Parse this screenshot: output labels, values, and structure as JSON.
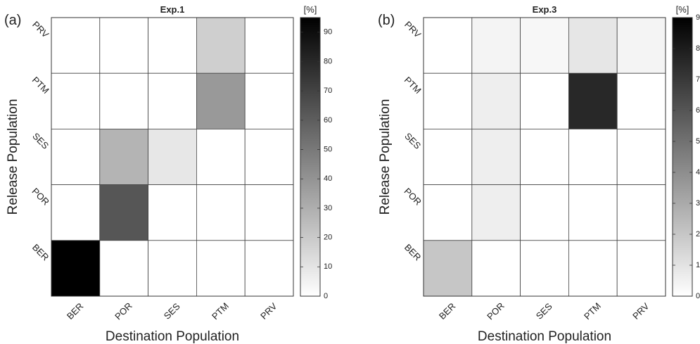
{
  "chart_data": [
    {
      "type": "heatmap",
      "panel_label": "(a)",
      "title": "Exp.1",
      "xlabel": "Destination Population",
      "ylabel": "Release Population",
      "x_categories": [
        "BER",
        "POR",
        "SES",
        "PTM",
        "PRV"
      ],
      "y_categories": [
        "PRV",
        "PTM",
        "SES",
        "POR",
        "BER"
      ],
      "values": [
        [
          0,
          0,
          0,
          18,
          0
        ],
        [
          0,
          0,
          0,
          38,
          0
        ],
        [
          0,
          28,
          9,
          0,
          0
        ],
        [
          0,
          63,
          0,
          0,
          0
        ],
        [
          95,
          0,
          0,
          0,
          0
        ]
      ],
      "colorbar": {
        "unit_label": "[%]",
        "min": 0,
        "max": 95,
        "ticks": [
          0,
          10,
          20,
          30,
          40,
          50,
          60,
          70,
          80,
          90
        ]
      },
      "colormap": {
        "low": "#ffffff",
        "high": "#000000"
      }
    },
    {
      "type": "heatmap",
      "panel_label": "(b)",
      "title": "Exp.3",
      "xlabel": "Destination Population",
      "ylabel": "Release Population",
      "x_categories": [
        "BER",
        "POR",
        "SES",
        "PTM",
        "PRV"
      ],
      "y_categories": [
        "PRV",
        "PTM",
        "SES",
        "POR",
        "BER"
      ],
      "values": [
        [
          0,
          0.4,
          0.3,
          0.9,
          0.4
        ],
        [
          0,
          0.6,
          0,
          7.6,
          0
        ],
        [
          0,
          0.6,
          0,
          0,
          0
        ],
        [
          0,
          0.6,
          0,
          0,
          0
        ],
        [
          2.0,
          0,
          0,
          0,
          0
        ]
      ],
      "colorbar": {
        "unit_label": "[%]",
        "min": 0,
        "max": 9,
        "ticks": [
          0,
          1,
          2,
          3,
          4,
          5,
          6,
          7,
          8,
          9
        ]
      },
      "colormap": {
        "low": "#ffffff",
        "high": "#000000"
      }
    }
  ]
}
